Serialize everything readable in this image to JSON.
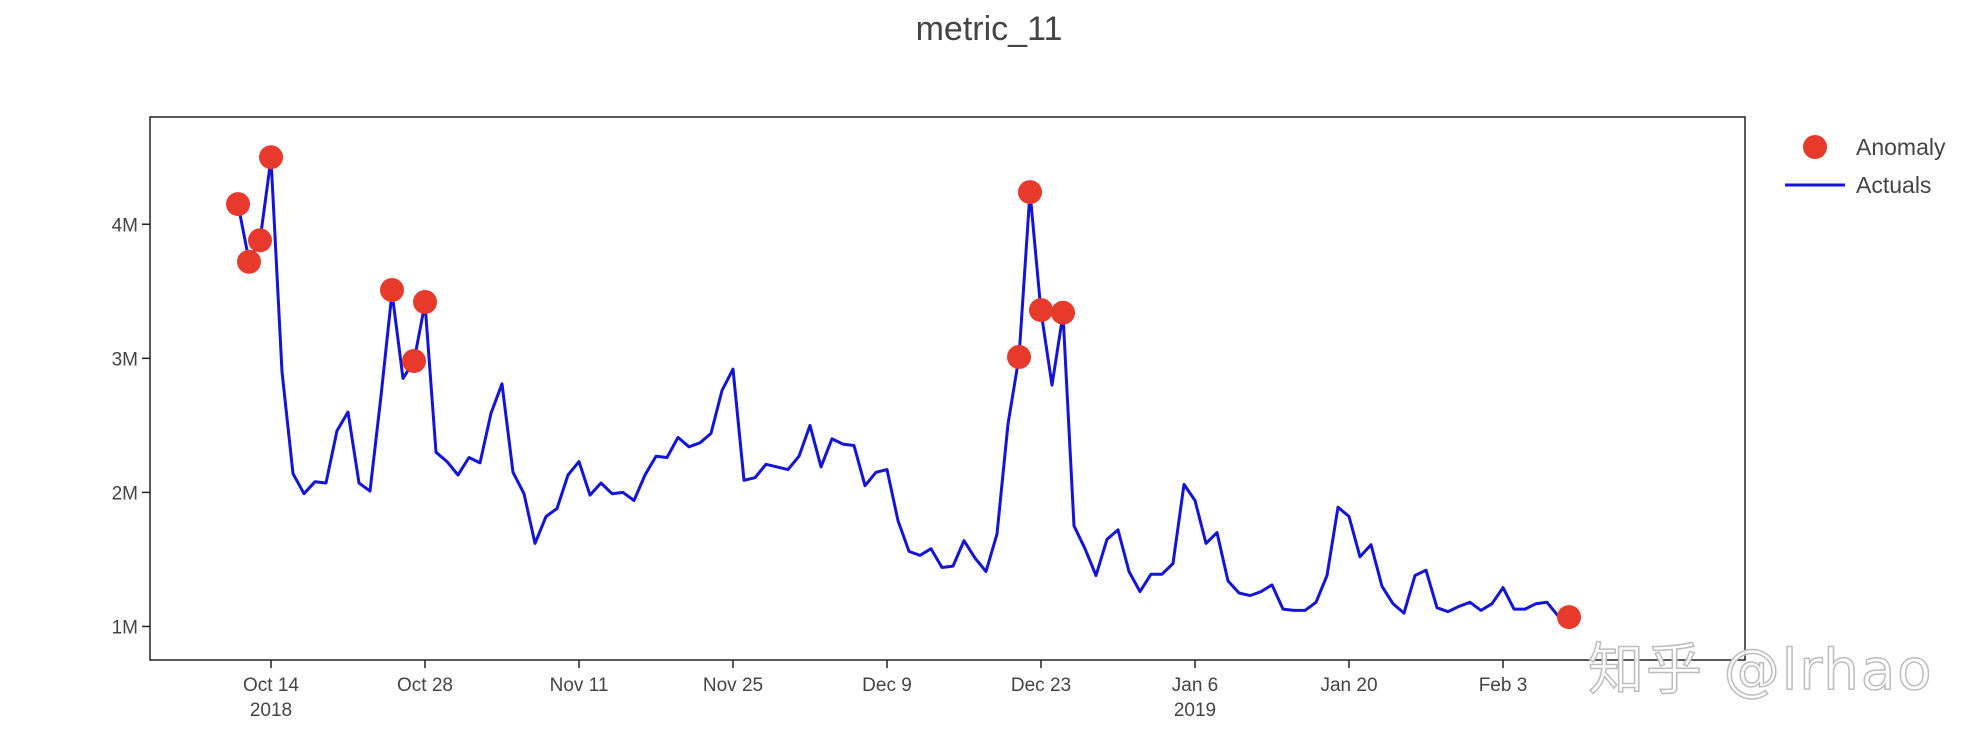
{
  "chart_data": {
    "type": "line",
    "title": "metric_11",
    "xlabel": "",
    "ylabel": "",
    "x_ticks": [
      {
        "date": "2018-10-14",
        "label": "Oct 14",
        "year": "2018"
      },
      {
        "date": "2018-10-28",
        "label": "Oct 28",
        "year": ""
      },
      {
        "date": "2018-11-11",
        "label": "Nov 11",
        "year": ""
      },
      {
        "date": "2018-11-25",
        "label": "Nov 25",
        "year": ""
      },
      {
        "date": "2018-12-09",
        "label": "Dec 9",
        "year": ""
      },
      {
        "date": "2018-12-23",
        "label": "Dec 23",
        "year": ""
      },
      {
        "date": "2019-01-06",
        "label": "Jan 6",
        "year": "2019"
      },
      {
        "date": "2019-01-20",
        "label": "Jan 20",
        "year": ""
      },
      {
        "date": "2019-02-03",
        "label": "Feb 3",
        "year": ""
      }
    ],
    "y_ticks": [
      {
        "value": 1000000,
        "label": "1M"
      },
      {
        "value": 2000000,
        "label": "2M"
      },
      {
        "value": 3000000,
        "label": "3M"
      },
      {
        "value": 4000000,
        "label": "4M"
      }
    ],
    "xlim": [
      "2018-10-03",
      "2019-02-25"
    ],
    "ylim": [
      750000,
      4800000
    ],
    "grid": false,
    "legend_position": "top-right",
    "series": [
      {
        "name": "Actuals",
        "kind": "line",
        "color": "#1414d9",
        "x": [
          "2018-10-11",
          "2018-10-12",
          "2018-10-13",
          "2018-10-14",
          "2018-10-15",
          "2018-10-16",
          "2018-10-17",
          "2018-10-18",
          "2018-10-19",
          "2018-10-20",
          "2018-10-21",
          "2018-10-22",
          "2018-10-23",
          "2018-10-24",
          "2018-10-25",
          "2018-10-26",
          "2018-10-27",
          "2018-10-28",
          "2018-10-29",
          "2018-10-30",
          "2018-10-31",
          "2018-11-01",
          "2018-11-02",
          "2018-11-03",
          "2018-11-04",
          "2018-11-05",
          "2018-11-06",
          "2018-11-07",
          "2018-11-08",
          "2018-11-09",
          "2018-11-10",
          "2018-11-11",
          "2018-11-12",
          "2018-11-13",
          "2018-11-14",
          "2018-11-15",
          "2018-11-16",
          "2018-11-17",
          "2018-11-18",
          "2018-11-19",
          "2018-11-20",
          "2018-11-21",
          "2018-11-22",
          "2018-11-23",
          "2018-11-24",
          "2018-11-25",
          "2018-11-26",
          "2018-11-27",
          "2018-11-28",
          "2018-11-29",
          "2018-11-30",
          "2018-12-01",
          "2018-12-02",
          "2018-12-03",
          "2018-12-04",
          "2018-12-05",
          "2018-12-06",
          "2018-12-07",
          "2018-12-08",
          "2018-12-09",
          "2018-12-10",
          "2018-12-11",
          "2018-12-12",
          "2018-12-13",
          "2018-12-14",
          "2018-12-15",
          "2018-12-16",
          "2018-12-17",
          "2018-12-18",
          "2018-12-19",
          "2018-12-20",
          "2018-12-21",
          "2018-12-22",
          "2018-12-23",
          "2018-12-24",
          "2018-12-25",
          "2018-12-26",
          "2018-12-27",
          "2018-12-28",
          "2018-12-29",
          "2018-12-30",
          "2018-12-31",
          "2019-01-01",
          "2019-01-02",
          "2019-01-03",
          "2019-01-04",
          "2019-01-05",
          "2019-01-06",
          "2019-01-07",
          "2019-01-08",
          "2019-01-09",
          "2019-01-10",
          "2019-01-11",
          "2019-01-12",
          "2019-01-13",
          "2019-01-14",
          "2019-01-15",
          "2019-01-16",
          "2019-01-17",
          "2019-01-18",
          "2019-01-19",
          "2019-01-20",
          "2019-01-21",
          "2019-01-22",
          "2019-01-23",
          "2019-01-24",
          "2019-01-25",
          "2019-01-26",
          "2019-01-27",
          "2019-01-28",
          "2019-01-29",
          "2019-01-30",
          "2019-01-31",
          "2019-02-01",
          "2019-02-02",
          "2019-02-03",
          "2019-02-04",
          "2019-02-05",
          "2019-02-06",
          "2019-02-07",
          "2019-02-08",
          "2019-02-09"
        ],
        "values": [
          4150000,
          3730000,
          3880000,
          4490000,
          2900000,
          2140000,
          1990000,
          2080000,
          2070000,
          2460000,
          2600000,
          2070000,
          2010000,
          2720000,
          3490000,
          2850000,
          2980000,
          3410000,
          2300000,
          2230000,
          2130000,
          2260000,
          2220000,
          2590000,
          2810000,
          2150000,
          1990000,
          1620000,
          1820000,
          1880000,
          2130000,
          2230000,
          1980000,
          2070000,
          1990000,
          2000000,
          1940000,
          2130000,
          2270000,
          2260000,
          2410000,
          2340000,
          2370000,
          2440000,
          2760000,
          2920000,
          2090000,
          2110000,
          2210000,
          2190000,
          2170000,
          2270000,
          2500000,
          2190000,
          2400000,
          2360000,
          2350000,
          2050000,
          2150000,
          2170000,
          1790000,
          1560000,
          1530000,
          1580000,
          1440000,
          1450000,
          1640000,
          1510000,
          1410000,
          1690000,
          2510000,
          3010000,
          4240000,
          3350000,
          2800000,
          3330000,
          1750000,
          1580000,
          1380000,
          1650000,
          1720000,
          1410000,
          1260000,
          1390000,
          1390000,
          1470000,
          2060000,
          1940000,
          1620000,
          1700000,
          1340000,
          1250000,
          1230000,
          1260000,
          1310000,
          1130000,
          1120000,
          1120000,
          1180000,
          1380000,
          1890000,
          1820000,
          1520000,
          1610000,
          1300000,
          1170000,
          1100000,
          1380000,
          1420000,
          1140000,
          1110000,
          1150000,
          1180000,
          1120000,
          1170000,
          1290000,
          1130000,
          1130000,
          1170000,
          1180000,
          1080000,
          1070000
        ]
      },
      {
        "name": "Anomaly",
        "kind": "markers",
        "color": "#e8392d",
        "x": [
          "2018-10-11",
          "2018-10-12",
          "2018-10-13",
          "2018-10-14",
          "2018-10-25",
          "2018-10-27",
          "2018-10-28",
          "2018-12-21",
          "2018-12-22",
          "2018-12-23",
          "2018-12-25",
          "2019-02-09"
        ],
        "values": [
          4150000,
          3720000,
          3880000,
          4500000,
          3510000,
          2980000,
          3420000,
          3010000,
          4240000,
          3360000,
          3340000,
          1070000
        ]
      }
    ],
    "legend": [
      {
        "name": "Anomaly",
        "symbol": "marker",
        "color": "#e8392d"
      },
      {
        "name": "Actuals",
        "symbol": "line",
        "color": "#1414d9"
      }
    ]
  },
  "watermark": "知乎 @lrhao"
}
